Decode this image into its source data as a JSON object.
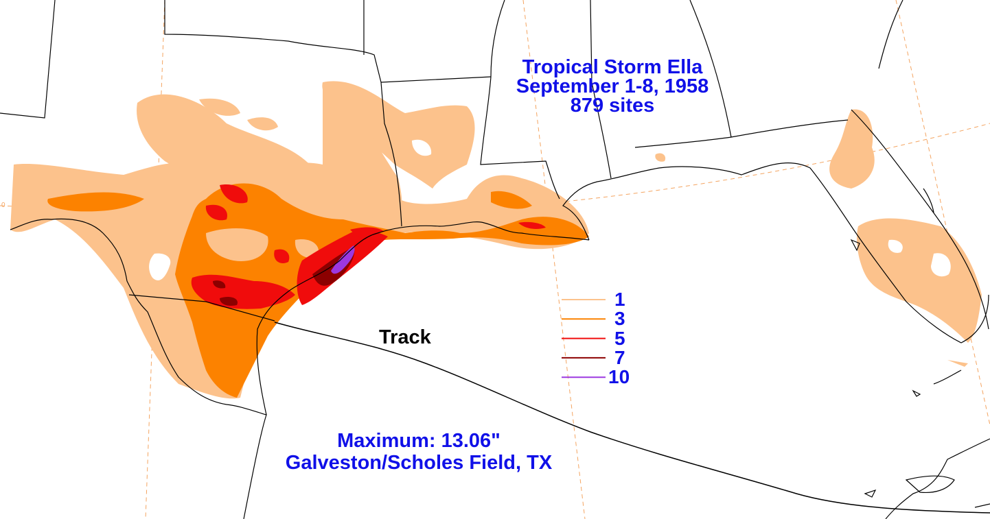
{
  "title": {
    "line1": "Tropical Storm Ella",
    "line2": "September 1-8, 1958",
    "line3": "879 sites"
  },
  "track_label": "Track",
  "maximum": {
    "line1": "Maximum:  13.06\"",
    "line2": "Galveston/Scholes Field, TX"
  },
  "grid_label": "0",
  "legend": [
    {
      "value": "1",
      "color": "#fcc28c"
    },
    {
      "value": "3",
      "color": "#fc8200"
    },
    {
      "value": "5",
      "color": "#f00c0c"
    },
    {
      "value": "7",
      "color": "#8c0000"
    },
    {
      "value": "10",
      "color": "#9c38e0"
    }
  ],
  "colors": {
    "text": "#1010e8",
    "borders": "#000000",
    "graticule": "#f4a460"
  }
}
